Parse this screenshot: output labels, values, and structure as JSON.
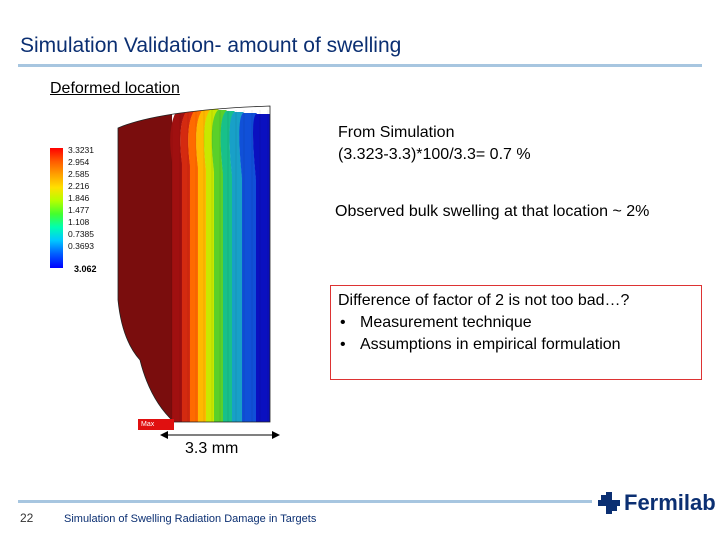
{
  "slide": {
    "title": "Simulation Validation- amount of swelling",
    "subtitle": "Deformed location",
    "simulation_lines": [
      "From Simulation",
      "(3.323-3.3)*100/3.3= 0.7 %"
    ],
    "observed": "Observed bulk swelling at that location ~ 2%",
    "difference": {
      "heading": "Difference of factor of 2 is not too bad…?",
      "bullets": [
        "Measurement technique",
        "Assumptions in empirical formulation"
      ]
    },
    "dimension_label": "3.3 mm",
    "max_tag": "Max"
  },
  "legend": {
    "labels": [
      "3.3231",
      "2.954",
      "2.585",
      "2.216",
      "1.846",
      "1.477",
      "1.108",
      "0.7385",
      "0.3693"
    ],
    "min_value": "3.062"
  },
  "colors": {
    "title": "#0b2f72",
    "rule": "#a7c6e0",
    "box_border": "#d33333",
    "contours": [
      "#7a0d0d",
      "#a01010",
      "#d42a10",
      "#ff6a00",
      "#ffb800",
      "#c8e800",
      "#5ad02a",
      "#18c08a",
      "#18a0c8",
      "#1050d8",
      "#0a10c0"
    ]
  },
  "footer": {
    "page_number": "22",
    "text": "Simulation of Swelling Radiation Damage in Targets",
    "logo_text": "Fermilab"
  }
}
